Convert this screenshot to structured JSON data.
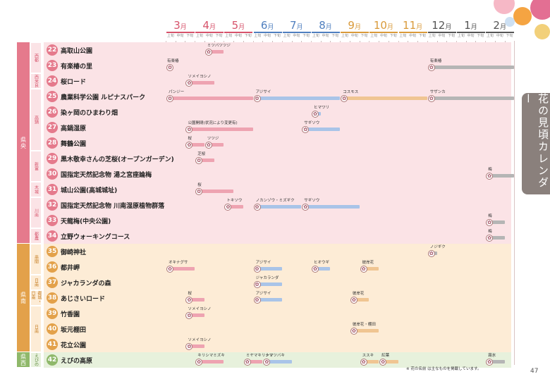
{
  "title": "花の見頃カレンダー",
  "page_number": "47",
  "note": "※ 花の名前 は主なものを掲載しています。",
  "months": [
    {
      "num": "3",
      "unit": "月",
      "color": "#d6536b"
    },
    {
      "num": "4",
      "unit": "月",
      "color": "#d6536b"
    },
    {
      "num": "5",
      "unit": "月",
      "color": "#d6536b"
    },
    {
      "num": "6",
      "unit": "月",
      "color": "#4f7fbf"
    },
    {
      "num": "7",
      "unit": "月",
      "color": "#4f7fbf"
    },
    {
      "num": "8",
      "unit": "月",
      "color": "#4f7fbf"
    },
    {
      "num": "9",
      "unit": "月",
      "color": "#d99a3a"
    },
    {
      "num": "10",
      "unit": "月",
      "color": "#d99a3a"
    },
    {
      "num": "11",
      "unit": "月",
      "color": "#d99a3a"
    },
    {
      "num": "12",
      "unit": "月",
      "color": "#555555"
    },
    {
      "num": "1",
      "unit": "月",
      "color": "#555555"
    },
    {
      "num": "2",
      "unit": "月",
      "color": "#555555"
    }
  ],
  "decades": [
    "上旬",
    "中旬",
    "下旬"
  ],
  "regions": [
    {
      "label": "県央",
      "color": "#e57a8c"
    },
    {
      "label": "県南",
      "color": "#e3a14a"
    },
    {
      "label": "県西",
      "color": "#8fb86a"
    }
  ],
  "subregions": [
    "西都",
    "西米良",
    "高鍋",
    "新富",
    "木城",
    "川南",
    "都農",
    "串間",
    "日南",
    "都城・日南",
    "日南",
    "えびの"
  ],
  "gardens": [
    {
      "no": "22",
      "name": "高取山公園"
    },
    {
      "no": "23",
      "name": "有楽椿の里"
    },
    {
      "no": "24",
      "name": "桜ロード"
    },
    {
      "no": "25",
      "name": "農業科学公園 ルピナスパーク"
    },
    {
      "no": "26",
      "name": "染ヶ岡のひまわり畑"
    },
    {
      "no": "27",
      "name": "高鍋湿原"
    },
    {
      "no": "28",
      "name": "舞鶴公園"
    },
    {
      "no": "29",
      "name": "黒木敬幸さんの芝桜(オープンガーデン)"
    },
    {
      "no": "30",
      "name": "国指定天然記念物 湯之宮座論梅"
    },
    {
      "no": "31",
      "name": "城山公園(高城城址)"
    },
    {
      "no": "32",
      "name": "国指定天然記念物 川南湿原植物群落"
    },
    {
      "no": "33",
      "name": "天龍梅(中央公園)"
    },
    {
      "no": "34",
      "name": "立野ウォーキングコース"
    },
    {
      "no": "35",
      "name": "御崎神社"
    },
    {
      "no": "36",
      "name": "都井岬"
    },
    {
      "no": "37",
      "name": "ジャカランダの森"
    },
    {
      "no": "38",
      "name": "あじさいロード"
    },
    {
      "no": "39",
      "name": "竹香園"
    },
    {
      "no": "40",
      "name": "坂元棚田"
    },
    {
      "no": "41",
      "name": "花立公園"
    },
    {
      "no": "42",
      "name": "えびの高原"
    }
  ],
  "flowers": [
    {
      "row": 0,
      "name": "ミツバツツジ",
      "start": 4,
      "end": 6,
      "color": "pink"
    },
    {
      "row": 1,
      "name": "有楽椿",
      "start": 0,
      "end": 36,
      "color": "gray",
      "wrap": true
    },
    {
      "row": 1,
      "name": "有楽椿",
      "start": 27,
      "end": 36,
      "color": "gray"
    },
    {
      "row": 2,
      "name": "ソメイヨシノ",
      "start": 2,
      "end": 5,
      "color": "pink"
    },
    {
      "row": 3,
      "name": "パンジー",
      "start": 0,
      "end": 9,
      "color": "pink"
    },
    {
      "row": 3,
      "name": "アジサイ",
      "start": 9,
      "end": 18,
      "color": "blue"
    },
    {
      "row": 3,
      "name": "コスモス",
      "start": 18,
      "end": 27,
      "color": "orange"
    },
    {
      "row": 3,
      "name": "サザンカ",
      "start": 27,
      "end": 36,
      "color": "gray"
    },
    {
      "row": 4,
      "name": "ヒマワリ",
      "start": 15,
      "end": 16,
      "color": "blue"
    },
    {
      "row": 5,
      "name": "公園開閉(状況により変更有)",
      "start": 2,
      "end": 9,
      "color": "pink"
    },
    {
      "row": 5,
      "name": "サギソウ",
      "start": 14,
      "end": 18,
      "color": "blue"
    },
    {
      "row": 6,
      "name": "桜",
      "start": 2,
      "end": 4,
      "color": "pink"
    },
    {
      "row": 6,
      "name": "ツツジ",
      "start": 4,
      "end": 6,
      "color": "pink"
    },
    {
      "row": 7,
      "name": "芝桜",
      "start": 3,
      "end": 5,
      "color": "pink"
    },
    {
      "row": 8,
      "name": "梅",
      "start": 33,
      "end": 36,
      "color": "gray"
    },
    {
      "row": 9,
      "name": "桜",
      "start": 3,
      "end": 7,
      "color": "pink"
    },
    {
      "row": 10,
      "name": "トキソウ",
      "start": 6,
      "end": 8,
      "color": "pink"
    },
    {
      "row": 10,
      "name": "ノカンゾウ・ミズギク",
      "start": 9,
      "end": 14,
      "color": "blue"
    },
    {
      "row": 10,
      "name": "サギソウ",
      "start": 14,
      "end": 20,
      "color": "blue"
    },
    {
      "row": 11,
      "name": "梅",
      "start": 33,
      "end": 35,
      "color": "gray"
    },
    {
      "row": 12,
      "name": "梅",
      "start": 33,
      "end": 35,
      "color": "gray"
    },
    {
      "row": 13,
      "name": "ノジギク",
      "start": 27,
      "end": 28,
      "color": "gray"
    },
    {
      "row": 14,
      "name": "オキナグサ",
      "start": 0,
      "end": 3,
      "color": "pink"
    },
    {
      "row": 14,
      "name": "アジサイ",
      "start": 9,
      "end": 12,
      "color": "blue"
    },
    {
      "row": 14,
      "name": "ヒオウギ",
      "start": 15,
      "end": 17,
      "color": "blue"
    },
    {
      "row": 14,
      "name": "彼岸花",
      "start": 20,
      "end": 22,
      "color": "orange"
    },
    {
      "row": 15,
      "name": "ジャカランダ",
      "start": 9,
      "end": 12,
      "color": "blue"
    },
    {
      "row": 16,
      "name": "桜",
      "start": 2,
      "end": 4,
      "color": "pink"
    },
    {
      "row": 16,
      "name": "アジサイ",
      "start": 9,
      "end": 12,
      "color": "blue"
    },
    {
      "row": 16,
      "name": "彼岸花",
      "start": 19,
      "end": 21,
      "color": "orange"
    },
    {
      "row": 17,
      "name": "ソメイヨシノ",
      "start": 2,
      "end": 4,
      "color": "pink"
    },
    {
      "row": 18,
      "name": "彼岸花・棚田",
      "start": 19,
      "end": 22,
      "color": "orange"
    },
    {
      "row": 19,
      "name": "ソメイヨシノ",
      "start": 2,
      "end": 4,
      "color": "pink"
    },
    {
      "row": 20,
      "name": "キリシマミズキ",
      "start": 3,
      "end": 6,
      "color": "pink"
    },
    {
      "row": 20,
      "name": "ミヤマキリシマ",
      "start": 8,
      "end": 10,
      "color": "pink"
    },
    {
      "row": 20,
      "name": "ナツツバキ",
      "start": 10,
      "end": 13,
      "color": "blue"
    },
    {
      "row": 20,
      "name": "ススキ",
      "start": 20,
      "end": 22,
      "color": "orange"
    },
    {
      "row": 20,
      "name": "紅葉",
      "start": 22,
      "end": 24,
      "color": "orange"
    },
    {
      "row": 20,
      "name": "霧氷",
      "start": 33,
      "end": 35,
      "color": "gray"
    }
  ]
}
